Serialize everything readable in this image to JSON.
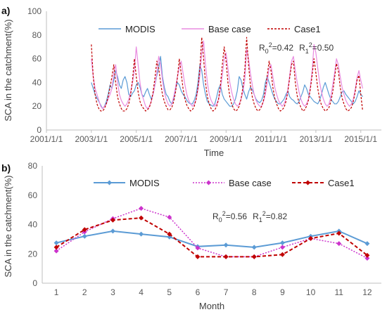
{
  "chart_data": [
    {
      "panel": "a)",
      "type": "line",
      "ylabel": "SCA in the catchment(%)",
      "xlabel": "Time",
      "ylim": [
        0,
        100
      ],
      "yticks": [
        0,
        20,
        40,
        60,
        80,
        100
      ],
      "xticks": [
        "2001/1/1",
        "2003/1/1",
        "2005/1/1",
        "2007/1/1",
        "2009/1/1",
        "2011/1/1",
        "2013/1/1",
        "2015/1/1"
      ],
      "xlim": [
        "2001-01",
        "2015-12"
      ],
      "x_start": "2003-01",
      "x_step": "1 month",
      "grid": false,
      "legend": "top",
      "series": [
        {
          "name": "MODIS",
          "color": "#5b9bd5",
          "style": "solid",
          "values": [
            40,
            35,
            30,
            27,
            24,
            21,
            18,
            20,
            24,
            30,
            38,
            35,
            42,
            50,
            45,
            38,
            35,
            42,
            45,
            40,
            30,
            28,
            31,
            33,
            38,
            40,
            36,
            30,
            28,
            32,
            35,
            30,
            26,
            30,
            38,
            46,
            52,
            62,
            45,
            36,
            30,
            28,
            24,
            22,
            26,
            35,
            40,
            38,
            33,
            30,
            28,
            25,
            23,
            22,
            22,
            25,
            30,
            40,
            55,
            50,
            38,
            30,
            24,
            22,
            21,
            20,
            22,
            28,
            35,
            38,
            30,
            26,
            24,
            22,
            20,
            20,
            22,
            26,
            33,
            45,
            42,
            35,
            30,
            26,
            32,
            36,
            34,
            30,
            26,
            24,
            23,
            25,
            30,
            40,
            45,
            40,
            35,
            30,
            26,
            24,
            22,
            22,
            24,
            26,
            30,
            33,
            28,
            26,
            25,
            23,
            22,
            24,
            28,
            32,
            38,
            35,
            30,
            28,
            26,
            24,
            23,
            22,
            25,
            30,
            36,
            40,
            35,
            30,
            26,
            24,
            22,
            22,
            24,
            28,
            32,
            33,
            30,
            28,
            26,
            24,
            22,
            24,
            28,
            33,
            30,
            28
          ]
        },
        {
          "name": "Base case",
          "color": "#e98be0",
          "style": "solid",
          "values": [
            60,
            45,
            35,
            30,
            25,
            20,
            18,
            20,
            22,
            26,
            30,
            35,
            48,
            55,
            40,
            30,
            25,
            22,
            20,
            22,
            26,
            32,
            40,
            50,
            70,
            55,
            40,
            30,
            25,
            20,
            18,
            20,
            24,
            30,
            38,
            48,
            62,
            55,
            42,
            32,
            26,
            22,
            20,
            22,
            28,
            36,
            45,
            52,
            58,
            48,
            38,
            30,
            25,
            22,
            20,
            22,
            26,
            34,
            46,
            65,
            75,
            55,
            40,
            30,
            25,
            22,
            20,
            22,
            26,
            34,
            46,
            60,
            65,
            52,
            40,
            32,
            26,
            22,
            20,
            22,
            26,
            32,
            42,
            68,
            60,
            48,
            38,
            30,
            25,
            22,
            20,
            20,
            24,
            30,
            40,
            52,
            55,
            45,
            36,
            30,
            25,
            22,
            20,
            22,
            26,
            34,
            46,
            58,
            62,
            50,
            40,
            32,
            26,
            22,
            20,
            22,
            26,
            36,
            50,
            72,
            65,
            52,
            40,
            32,
            26,
            22,
            20,
            22,
            28,
            38,
            48,
            60,
            55,
            45,
            36,
            30,
            25,
            22,
            20,
            22,
            26,
            34,
            44,
            50,
            42,
            35
          ]
        },
        {
          "name": "Case1",
          "color": "#c00000",
          "style": "dashed",
          "values": [
            72,
            45,
            30,
            22,
            18,
            16,
            16,
            18,
            22,
            28,
            36,
            45,
            55,
            40,
            28,
            22,
            18,
            16,
            16,
            18,
            22,
            30,
            42,
            60,
            45,
            32,
            24,
            20,
            18,
            16,
            17,
            19,
            24,
            32,
            44,
            58,
            52,
            40,
            30,
            24,
            20,
            17,
            17,
            19,
            24,
            32,
            44,
            60,
            48,
            35,
            26,
            21,
            18,
            16,
            17,
            20,
            26,
            36,
            52,
            78,
            60,
            40,
            28,
            22,
            18,
            16,
            17,
            20,
            26,
            38,
            55,
            70,
            58,
            40,
            28,
            22,
            18,
            16,
            17,
            20,
            26,
            36,
            50,
            78,
            55,
            38,
            28,
            22,
            18,
            16,
            17,
            20,
            25,
            34,
            46,
            58,
            50,
            36,
            27,
            22,
            18,
            16,
            17,
            19,
            24,
            32,
            44,
            55,
            58,
            40,
            29,
            23,
            19,
            16,
            17,
            20,
            25,
            34,
            46,
            60,
            48,
            35,
            26,
            21,
            18,
            16,
            17,
            19,
            24,
            32,
            44,
            56,
            50,
            36,
            27,
            22,
            18,
            16,
            17,
            19,
            24,
            32,
            42,
            46,
            30,
            16
          ]
        }
      ],
      "annotation": {
        "base": "R",
        "sub0": "0",
        "sup": "2",
        "val0": "=0.42",
        "sub1": "1",
        "val1": "=0.50"
      }
    },
    {
      "panel": "b)",
      "type": "line",
      "ylabel": "SCA in the catchment(%)",
      "xlabel": "Month",
      "ylim": [
        0,
        80
      ],
      "yticks": [
        0,
        20,
        40,
        60,
        80
      ],
      "categories": [
        "1",
        "2",
        "3",
        "4",
        "5",
        "6",
        "7",
        "8",
        "9",
        "10",
        "11",
        "12"
      ],
      "grid": false,
      "legend": "top",
      "series": [
        {
          "name": "MODIS",
          "color": "#5b9bd5",
          "style": "solid",
          "marker": "diamond",
          "values": [
            27.5,
            32,
            35.5,
            33.5,
            31.5,
            25,
            26,
            24.5,
            27.5,
            32,
            35.5,
            27
          ]
        },
        {
          "name": "Base case",
          "color": "#cc33cc",
          "style": "dotted",
          "marker": "diamond",
          "values": [
            22,
            35,
            44,
            51,
            45,
            24,
            18,
            18,
            24.5,
            30.5,
            27,
            17
          ]
        },
        {
          "name": "Case1",
          "color": "#c00000",
          "style": "dashed",
          "marker": "diamond",
          "values": [
            24.5,
            36.5,
            43,
            44.5,
            33.5,
            18,
            18,
            18,
            19.5,
            30.5,
            34,
            19
          ]
        }
      ],
      "annotation": {
        "base": "R",
        "sub0": "0",
        "sup": "2",
        "val0": "=0.56",
        "sub1": "1",
        "val1": "=0.82"
      }
    }
  ]
}
